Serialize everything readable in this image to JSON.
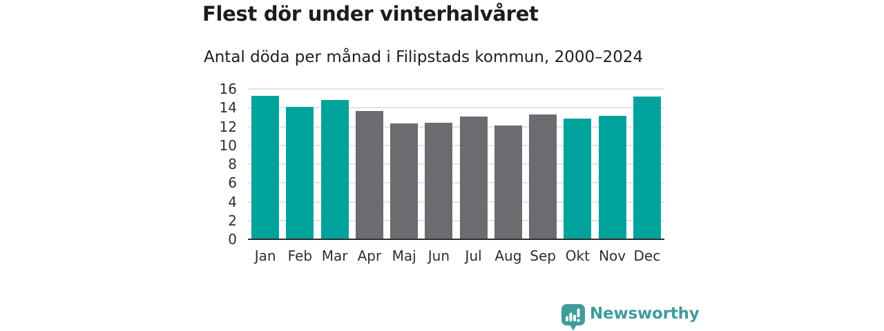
{
  "header": {
    "title": "Flest dör under vinterhalvåret",
    "subtitle": "Antal döda per månad i Filipstads kommun, 2000–2024"
  },
  "chart_data": {
    "type": "bar",
    "title": "Flest dör under vinterhalvåret",
    "subtitle": "Antal döda per månad i Filipstads kommun, 2000–2024",
    "categories": [
      "Jan",
      "Feb",
      "Mar",
      "Apr",
      "Maj",
      "Jun",
      "Jul",
      "Aug",
      "Sep",
      "Okt",
      "Nov",
      "Dec"
    ],
    "values": [
      15.3,
      14.1,
      14.85,
      13.65,
      12.3,
      12.4,
      13.05,
      12.1,
      13.25,
      12.85,
      13.15,
      15.2
    ],
    "bar_color_keys": [
      "teal",
      "teal",
      "teal",
      "gray",
      "gray",
      "gray",
      "gray",
      "gray",
      "gray",
      "teal",
      "teal",
      "teal"
    ],
    "colors": {
      "teal": "#00a39b",
      "gray": "#6b6b70"
    },
    "xlabel": "",
    "ylabel": "",
    "ylim": [
      0,
      16
    ],
    "ytick_step": 2,
    "yticks": [
      0,
      2,
      4,
      6,
      8,
      10,
      12,
      14,
      16
    ],
    "grid": true,
    "legend": "none",
    "gridline_color": "#e3e3e3",
    "axis_line_color": "#2e2e2e",
    "tick_label_color": "#2e2e2e"
  },
  "footer": {
    "brand": "Newsworthy",
    "brand_color": "#3f9c9b",
    "logo_icon": "bar-chart-speech-bubble-icon"
  }
}
